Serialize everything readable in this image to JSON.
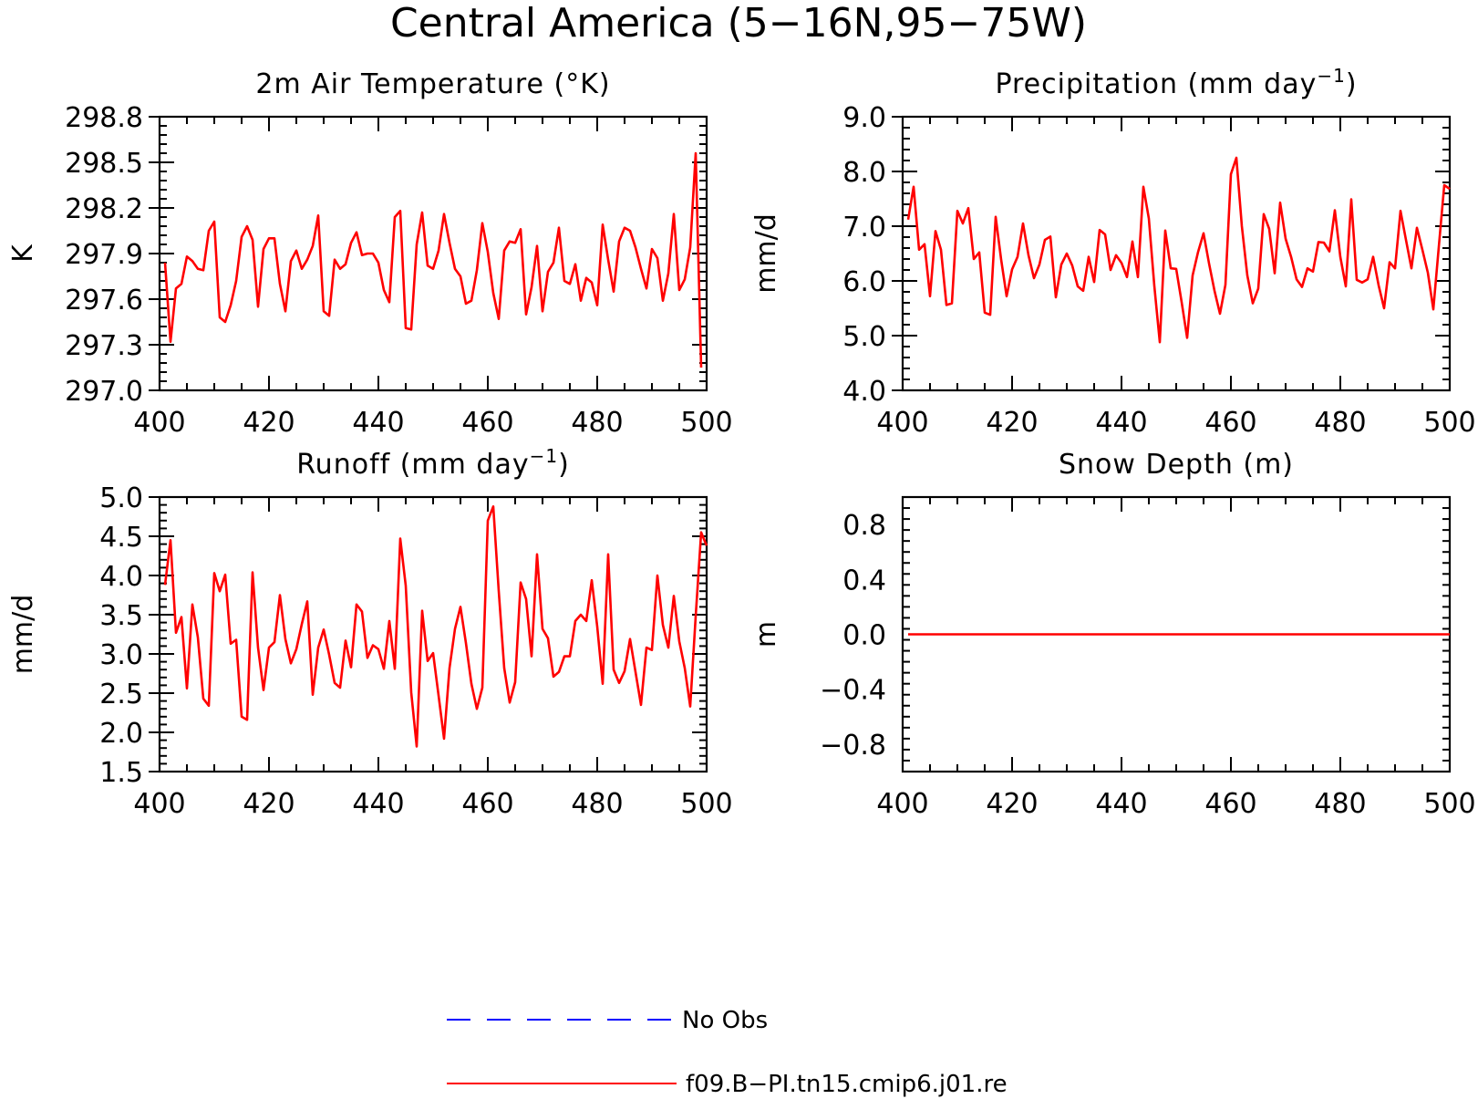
{
  "figure": {
    "title": "Central America (5−16N,95−75W)",
    "legend": [
      {
        "label": "No Obs",
        "color": "#0000ff",
        "style": "dashed"
      },
      {
        "label": "f09.B−PI.tn15.cmip6.j01.re",
        "color": "#ff0000",
        "style": "solid"
      }
    ]
  },
  "chart_data": [
    {
      "type": "line",
      "title": "2m Air Temperature (°K)",
      "title_sup": "",
      "title_tail": "",
      "ylabel": "K",
      "xlim": [
        400,
        500
      ],
      "ylim": [
        297.0,
        298.8
      ],
      "xticks": [
        400,
        420,
        440,
        460,
        480,
        500
      ],
      "yticks": [
        297.0,
        297.3,
        297.6,
        297.9,
        298.2,
        298.5,
        298.8
      ],
      "ytick_labels": [
        "297.0",
        "297.3",
        "297.6",
        "297.9",
        "298.2",
        "298.5",
        "298.8"
      ],
      "x_start": 401,
      "color": "#ff0000",
      "values": [
        297.84,
        297.32,
        297.67,
        297.7,
        297.88,
        297.85,
        297.8,
        297.79,
        298.05,
        298.11,
        297.48,
        297.45,
        297.56,
        297.72,
        298.01,
        298.08,
        297.99,
        297.55,
        297.93,
        298.0,
        298.0,
        297.7,
        297.52,
        297.85,
        297.92,
        297.8,
        297.86,
        297.95,
        298.15,
        297.52,
        297.49,
        297.86,
        297.8,
        297.83,
        297.97,
        298.04,
        297.89,
        297.9,
        297.9,
        297.84,
        297.66,
        297.58,
        298.14,
        298.18,
        297.41,
        297.4,
        297.96,
        298.17,
        297.82,
        297.8,
        297.92,
        298.16,
        297.97,
        297.8,
        297.75,
        297.57,
        297.59,
        297.79,
        298.1,
        297.91,
        297.64,
        297.47,
        297.92,
        297.98,
        297.97,
        298.06,
        297.5,
        297.68,
        297.95,
        297.52,
        297.78,
        297.84,
        298.07,
        297.72,
        297.7,
        297.83,
        297.59,
        297.74,
        297.71,
        297.56,
        298.09,
        297.86,
        297.65,
        297.98,
        298.07,
        298.05,
        297.94,
        297.8,
        297.67,
        297.93,
        297.87,
        297.59,
        297.77,
        298.16,
        297.66,
        297.73,
        297.94,
        298.56,
        297.15
      ]
    },
    {
      "type": "line",
      "title": "Precipitation (mm day",
      "title_sup": "−1",
      "title_tail": ")",
      "ylabel": "mm/d",
      "xlim": [
        400,
        500
      ],
      "ylim": [
        4.0,
        9.0
      ],
      "xticks": [
        400,
        420,
        440,
        460,
        480,
        500
      ],
      "yticks": [
        4.0,
        5.0,
        6.0,
        7.0,
        8.0,
        9.0
      ],
      "ytick_labels": [
        "4.0",
        "5.0",
        "6.0",
        "7.0",
        "8.0",
        "9.0"
      ],
      "x_start": 401,
      "color": "#ff0000",
      "values": [
        7.12,
        7.72,
        6.57,
        6.67,
        5.72,
        6.91,
        6.57,
        5.56,
        5.59,
        7.28,
        7.05,
        7.33,
        6.4,
        6.52,
        5.42,
        5.38,
        7.17,
        6.39,
        5.72,
        6.21,
        6.44,
        7.05,
        6.47,
        6.05,
        6.3,
        6.75,
        6.81,
        5.7,
        6.3,
        6.5,
        6.28,
        5.9,
        5.82,
        6.44,
        5.98,
        6.93,
        6.85,
        6.2,
        6.47,
        6.33,
        6.07,
        6.72,
        6.07,
        7.72,
        7.14,
        5.91,
        4.88,
        6.92,
        6.23,
        6.22,
        5.61,
        4.96,
        6.1,
        6.53,
        6.87,
        6.32,
        5.82,
        5.4,
        5.93,
        7.95,
        8.25,
        7.0,
        6.1,
        5.59,
        5.86,
        7.22,
        6.95,
        6.14,
        7.43,
        6.77,
        6.44,
        6.03,
        5.89,
        6.23,
        6.17,
        6.71,
        6.7,
        6.54,
        7.29,
        6.44,
        5.9,
        7.49,
        6.02,
        5.97,
        6.03,
        6.44,
        5.92,
        5.5,
        6.34,
        6.23,
        7.28,
        6.75,
        6.23,
        6.97,
        6.57,
        6.15,
        5.48,
        6.62,
        7.75,
        7.68
      ]
    },
    {
      "type": "line",
      "title": "Runoff (mm day",
      "title_sup": "−1",
      "title_tail": ")",
      "ylabel": "mm/d",
      "xlim": [
        400,
        500
      ],
      "ylim": [
        1.5,
        5.0
      ],
      "xticks": [
        400,
        420,
        440,
        460,
        480,
        500
      ],
      "yticks": [
        1.5,
        2.0,
        2.5,
        3.0,
        3.5,
        4.0,
        4.5,
        5.0
      ],
      "ytick_labels": [
        "1.5",
        "2.0",
        "2.5",
        "3.0",
        "3.5",
        "4.0",
        "4.5",
        "5.0"
      ],
      "x_start": 401,
      "color": "#ff0000",
      "values": [
        3.88,
        4.45,
        3.27,
        3.47,
        2.56,
        3.63,
        3.21,
        2.43,
        2.34,
        4.03,
        3.8,
        4.01,
        3.13,
        3.18,
        2.2,
        2.16,
        4.04,
        3.08,
        2.54,
        3.08,
        3.15,
        3.75,
        3.19,
        2.88,
        3.06,
        3.38,
        3.67,
        2.48,
        3.08,
        3.31,
        2.99,
        2.63,
        2.57,
        3.17,
        2.83,
        3.63,
        3.54,
        2.95,
        3.11,
        3.06,
        2.81,
        3.42,
        2.81,
        4.47,
        3.87,
        2.51,
        1.82,
        3.55,
        2.91,
        3.01,
        2.47,
        1.92,
        2.82,
        3.32,
        3.6,
        3.14,
        2.62,
        2.3,
        2.57,
        4.7,
        4.88,
        3.8,
        2.82,
        2.38,
        2.64,
        3.91,
        3.7,
        2.97,
        4.27,
        3.32,
        3.2,
        2.71,
        2.77,
        2.97,
        2.97,
        3.42,
        3.5,
        3.42,
        3.94,
        3.35,
        2.62,
        4.27,
        2.8,
        2.63,
        2.78,
        3.19,
        2.77,
        2.35,
        3.08,
        3.05,
        4.0,
        3.37,
        3.08,
        3.74,
        3.16,
        2.82,
        2.33,
        3.48,
        4.55,
        4.38
      ]
    },
    {
      "type": "line",
      "title": "Snow Depth (m)",
      "title_sup": "",
      "title_tail": "",
      "ylabel": "m",
      "xlim": [
        400,
        500
      ],
      "ylim": [
        -1.0,
        1.0
      ],
      "xticks": [
        400,
        420,
        440,
        460,
        480,
        500
      ],
      "yticks": [
        -0.8,
        -0.4,
        0.0,
        0.4,
        0.8
      ],
      "ytick_labels": [
        "−0.8",
        "−0.4",
        "0.0",
        "0.4",
        "0.8"
      ],
      "x_start": 401,
      "color": "#ff0000",
      "values": [
        0,
        0,
        0,
        0,
        0,
        0,
        0,
        0,
        0,
        0,
        0,
        0,
        0,
        0,
        0,
        0,
        0,
        0,
        0,
        0,
        0,
        0,
        0,
        0,
        0,
        0,
        0,
        0,
        0,
        0,
        0,
        0,
        0,
        0,
        0,
        0,
        0,
        0,
        0,
        0,
        0,
        0,
        0,
        0,
        0,
        0,
        0,
        0,
        0,
        0,
        0,
        0,
        0,
        0,
        0,
        0,
        0,
        0,
        0,
        0,
        0,
        0,
        0,
        0,
        0,
        0,
        0,
        0,
        0,
        0,
        0,
        0,
        0,
        0,
        0,
        0,
        0,
        0,
        0,
        0,
        0,
        0,
        0,
        0,
        0,
        0,
        0,
        0,
        0,
        0,
        0,
        0,
        0,
        0,
        0,
        0,
        0,
        0,
        0,
        0
      ]
    }
  ]
}
